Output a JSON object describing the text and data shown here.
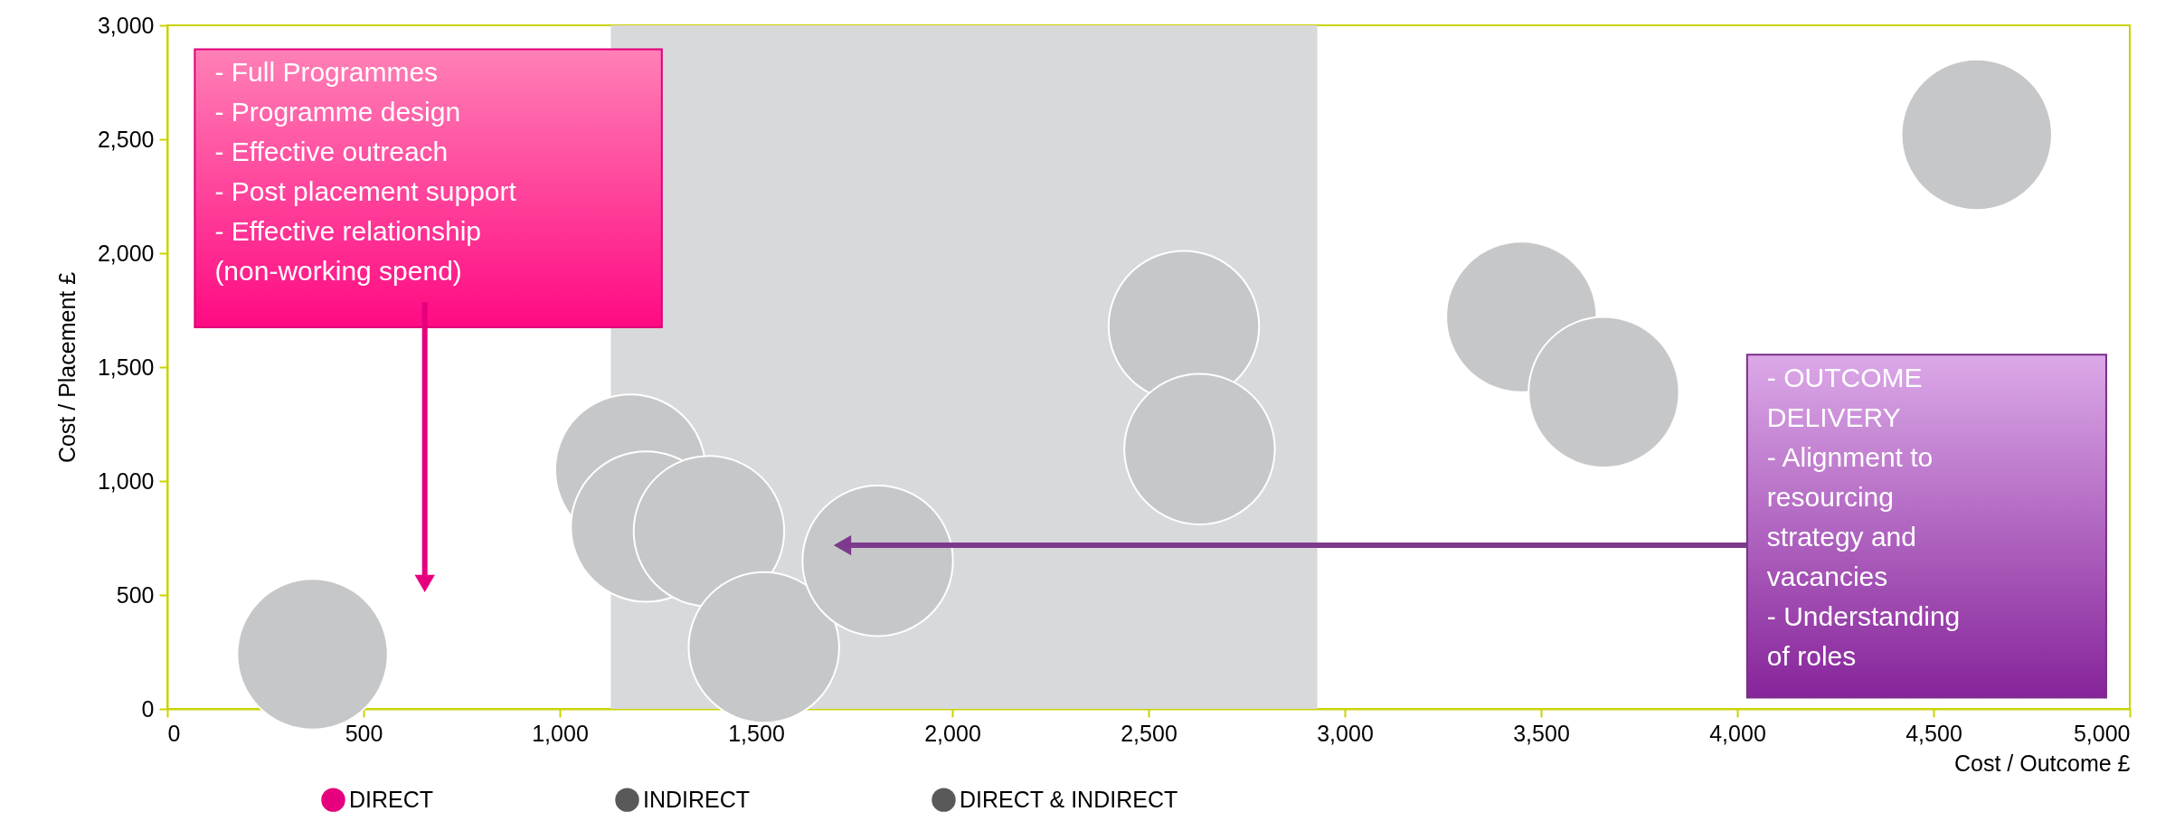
{
  "chart_data": {
    "type": "bubble",
    "xlabel": "Cost / Outcome £",
    "ylabel": "Cost / Placement £",
    "xlim": [
      0,
      5000
    ],
    "xticks": [
      0,
      500,
      {
        "value": 1000,
        "label": "1,000"
      },
      {
        "value": 1500,
        "label": "1,500"
      },
      {
        "value": 2000,
        "label": "2,000"
      },
      {
        "value": 2500,
        "label": "2,500"
      },
      {
        "value": 3000,
        "label": "3,000"
      },
      {
        "value": 3500,
        "label": "3,500"
      },
      {
        "value": 4000,
        "label": "4,000"
      },
      {
        "value": 4500,
        "label": "4,500"
      },
      {
        "value": 5000,
        "label": "5,000"
      }
    ],
    "ylim": [
      0,
      3000
    ],
    "yticks": [
      0,
      500,
      {
        "value": 1000,
        "label": "1,000"
      },
      {
        "value": 1500,
        "label": "1,500"
      },
      {
        "value": 2000,
        "label": "2,000"
      },
      {
        "value": 2500,
        "label": "2,500"
      },
      {
        "value": 3000,
        "label": "3,000"
      }
    ],
    "legend": "bottom",
    "grid": false,
    "series": [
      {
        "name": "DIRECT",
        "color": "#e6007e"
      },
      {
        "name": "INDIRECT",
        "color": "#595959"
      },
      {
        "name": "DIRECT & INDIRECT",
        "color": "#595959"
      },
      {
        "color": "#c6c7c9",
        "x": [
          370,
          1180,
          1220,
          1380,
          1520,
          1810,
          2590,
          2630,
          3450,
          3660,
          4610
        ],
        "values": [
          240,
          1050,
          800,
          780,
          270,
          650,
          1680,
          1140,
          1720,
          1390,
          2520
        ],
        "sizes": [
          1,
          1,
          1,
          1,
          1,
          1,
          1,
          1,
          1,
          1,
          1
        ]
      }
    ],
    "bands": [
      {
        "axis": "x",
        "from": 1130,
        "to": 2930,
        "color": "#d8d9db"
      }
    ],
    "annotations": [
      {
        "text": "-   Full Programmes\n-   Programme design\n-   Effective outreach\n-   Post placement support\n-   Effective relationship\n    (non-working spend)",
        "x": 656,
        "y": 550
      },
      {
        "text": "-   OUTCOME\n    DELIVERY\n-   Alignment to\n    resourcing\n    strategy and\n    vacancies\n-   Understanding\n    of roles",
        "x": 1720,
        "y": 718
      }
    ]
  }
}
